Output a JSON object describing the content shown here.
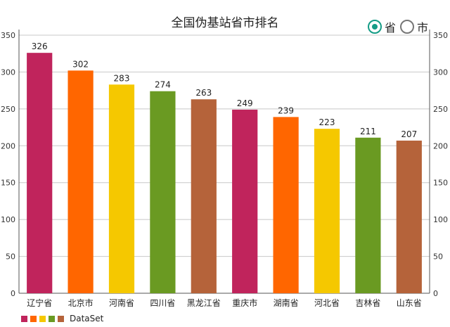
{
  "title": "全国伪基站省市排名",
  "toggle": {
    "options": [
      {
        "label": "省",
        "checked": true
      },
      {
        "label": "市",
        "checked": false
      }
    ]
  },
  "chart_data": {
    "type": "bar",
    "categories": [
      "辽宁省",
      "北京市",
      "河南省",
      "四川省",
      "黑龙江省",
      "重庆市",
      "湖南省",
      "河北省",
      "吉林省",
      "山东省"
    ],
    "series": [
      {
        "name": "DataSet",
        "values": [
          326,
          302,
          283,
          274,
          263,
          249,
          239,
          223,
          211,
          207
        ]
      }
    ],
    "colors": [
      "#c0245c",
      "#ff6600",
      "#f5c800",
      "#6a9a22",
      "#b5633a",
      "#c0245c",
      "#ff6600",
      "#f5c800",
      "#6a9a22",
      "#b5633a"
    ],
    "legend_colors": [
      "#c0245c",
      "#ff6600",
      "#f5c800",
      "#6a9a22",
      "#b5633a"
    ],
    "ylim": [
      0,
      350
    ],
    "yticks": [
      0,
      50,
      100,
      150,
      200,
      250,
      300,
      350
    ],
    "grid": true,
    "legend_position": "bottom-left"
  }
}
